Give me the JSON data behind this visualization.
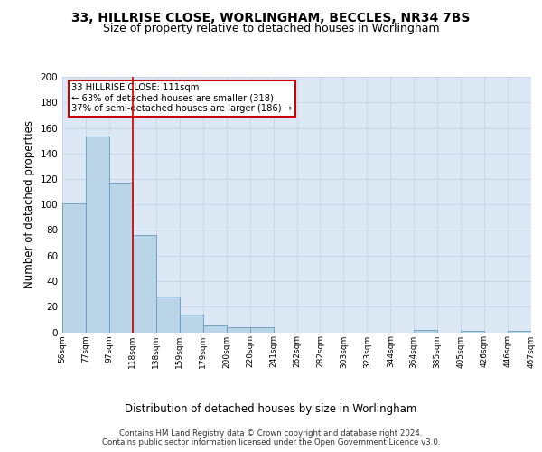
{
  "title1": "33, HILLRISE CLOSE, WORLINGHAM, BECCLES, NR34 7BS",
  "title2": "Size of property relative to detached houses in Worlingham",
  "xlabel": "Distribution of detached houses by size in Worlingham",
  "ylabel": "Number of detached properties",
  "bar_values": [
    101,
    153,
    117,
    76,
    28,
    14,
    5,
    4,
    4,
    0,
    0,
    0,
    0,
    0,
    0,
    2,
    0,
    1,
    0,
    1
  ],
  "categories": [
    "56sqm",
    "77sqm",
    "97sqm",
    "118sqm",
    "138sqm",
    "159sqm",
    "179sqm",
    "200sqm",
    "220sqm",
    "241sqm",
    "262sqm",
    "282sqm",
    "303sqm",
    "323sqm",
    "344sqm",
    "364sqm",
    "385sqm",
    "405sqm",
    "426sqm",
    "446sqm",
    "467sqm"
  ],
  "bar_color": "#bad4e8",
  "bar_edge_color": "#6699bb",
  "vline_color": "#cc0000",
  "annotation_box_text": "33 HILLRISE CLOSE: 111sqm\n← 63% of detached houses are smaller (318)\n37% of semi-detached houses are larger (186) →",
  "annotation_box_color": "#cc0000",
  "annotation_box_bg": "#ffffff",
  "ylim": [
    0,
    200
  ],
  "yticks": [
    0,
    20,
    40,
    60,
    80,
    100,
    120,
    140,
    160,
    180,
    200
  ],
  "grid_color": "#c8d8ea",
  "bg_color": "#dce8f4",
  "footer": "Contains HM Land Registry data © Crown copyright and database right 2024.\nContains public sector information licensed under the Open Government Licence v3.0.",
  "title1_fontsize": 10,
  "title2_fontsize": 9,
  "xlabel_fontsize": 8.5,
  "ylabel_fontsize": 8.5,
  "vline_bin": 2
}
